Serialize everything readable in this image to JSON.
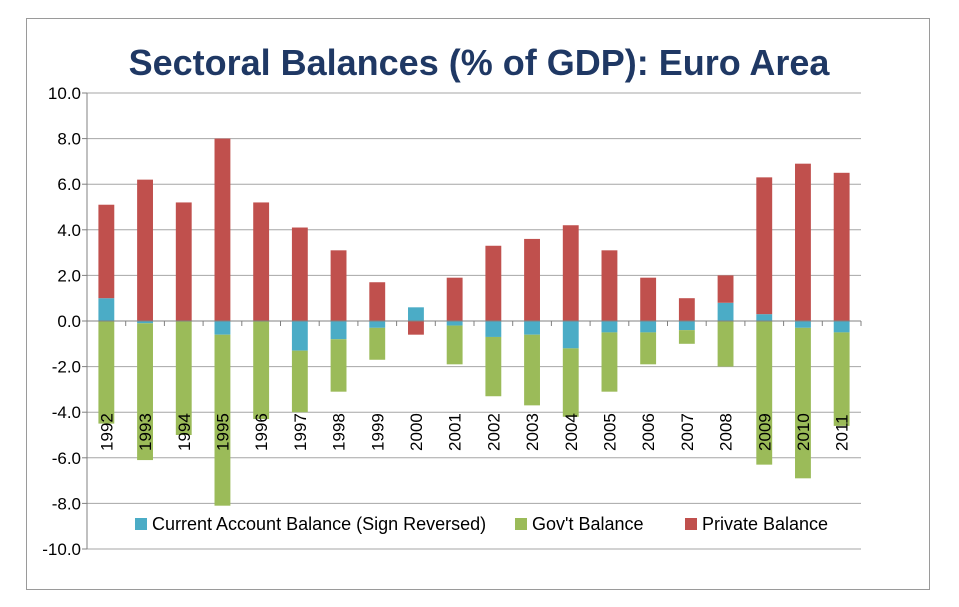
{
  "chart_data": {
    "type": "bar",
    "stacked": true,
    "title": "Sectoral Balances (% of GDP): Euro Area",
    "xlabel": "",
    "ylabel": "",
    "ylim": [
      -10,
      10
    ],
    "yticks": [
      "10.0",
      "8.0",
      "6.0",
      "4.0",
      "2.0",
      "0.0",
      "-2.0",
      "-4.0",
      "-6.0",
      "-8.0",
      "-10.0"
    ],
    "grid": true,
    "legend": "bottom",
    "categories": [
      "1992",
      "1993",
      "1994",
      "1995",
      "1996",
      "1997",
      "1998",
      "1999",
      "2000",
      "2001",
      "2002",
      "2003",
      "2004",
      "2005",
      "2006",
      "2007",
      "2008",
      "2009",
      "2010",
      "2011"
    ],
    "series": [
      {
        "name": "Current Account Balance (Sign Reversed)",
        "color": "#4bacc6",
        "values": [
          1.0,
          -0.1,
          0.0,
          -0.6,
          0.0,
          -1.3,
          -0.8,
          -0.3,
          0.6,
          -0.2,
          -0.7,
          -0.6,
          -1.2,
          -0.5,
          -0.5,
          -0.4,
          0.8,
          0.3,
          -0.3,
          -0.5
        ]
      },
      {
        "name": "Gov't Balance",
        "color": "#9bbb59",
        "values": [
          -4.5,
          -6.0,
          -5.0,
          -7.5,
          -4.3,
          -2.7,
          -2.3,
          -1.4,
          0.0,
          -1.7,
          -2.6,
          -3.1,
          -3.0,
          -2.6,
          -1.4,
          -0.6,
          -2.0,
          -6.3,
          -6.6,
          -4.1
        ]
      },
      {
        "name": "Private Balance",
        "color": "#c0504d",
        "values": [
          4.1,
          6.2,
          5.2,
          8.0,
          5.2,
          4.1,
          3.1,
          1.7,
          -0.6,
          1.9,
          3.3,
          3.6,
          4.2,
          3.1,
          1.9,
          1.0,
          1.2,
          6.0,
          6.9,
          6.5
        ]
      }
    ]
  }
}
